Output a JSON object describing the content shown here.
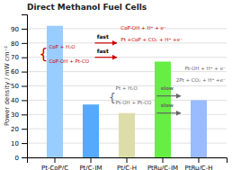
{
  "chart_data": {
    "type": "bar",
    "title": "Direct Methanol Fuel Cells",
    "y_label": "Power density / mW cm⁻²",
    "categories": [
      "Pt-CoP/C",
      "Pt/C-JM",
      "Pt/C-H",
      "PtRu/C-JM",
      "PtRu/C-H"
    ],
    "values": [
      92,
      37,
      31,
      67,
      40
    ],
    "colors": [
      "#99ccff",
      "#55aaff",
      "#ddddaa",
      "#66ee44",
      "#99bbff"
    ],
    "ylim": [
      0,
      100
    ],
    "yticks": [
      0,
      10,
      20,
      30,
      40,
      50,
      60,
      70,
      80,
      90
    ],
    "grid": true,
    "annotations": [
      {
        "text": "{",
        "color": "#cc0000"
      },
      {
        "text": "CoP + H₂O",
        "color": "#cc0000"
      },
      {
        "text": "CoP-OH + Pt-CO",
        "color": "#cc0000"
      },
      {
        "text": "fast",
        "color": "#000000"
      },
      {
        "text": "fast",
        "color": "#000000"
      },
      {
        "text": "CoP-OH + H⁺ + e⁻",
        "color": "#cc0000"
      },
      {
        "text": "Pt +CoP + CO₂ + H⁺ +e⁻",
        "color": "#cc0000"
      },
      {
        "text": "{",
        "color": "#666666"
      },
      {
        "text": "Pt + H₂O",
        "color": "#666666"
      },
      {
        "text": "Pt-OH + Pt-CO",
        "color": "#666666"
      },
      {
        "text": "slow",
        "color": "#666666"
      },
      {
        "text": "slow",
        "color": "#666666"
      },
      {
        "text": "Pt-OH + H⁺ + e⁻",
        "color": "#666666"
      },
      {
        "text": "2Pt + CO₂ + H⁺ +e⁻",
        "color": "#666666"
      }
    ]
  }
}
